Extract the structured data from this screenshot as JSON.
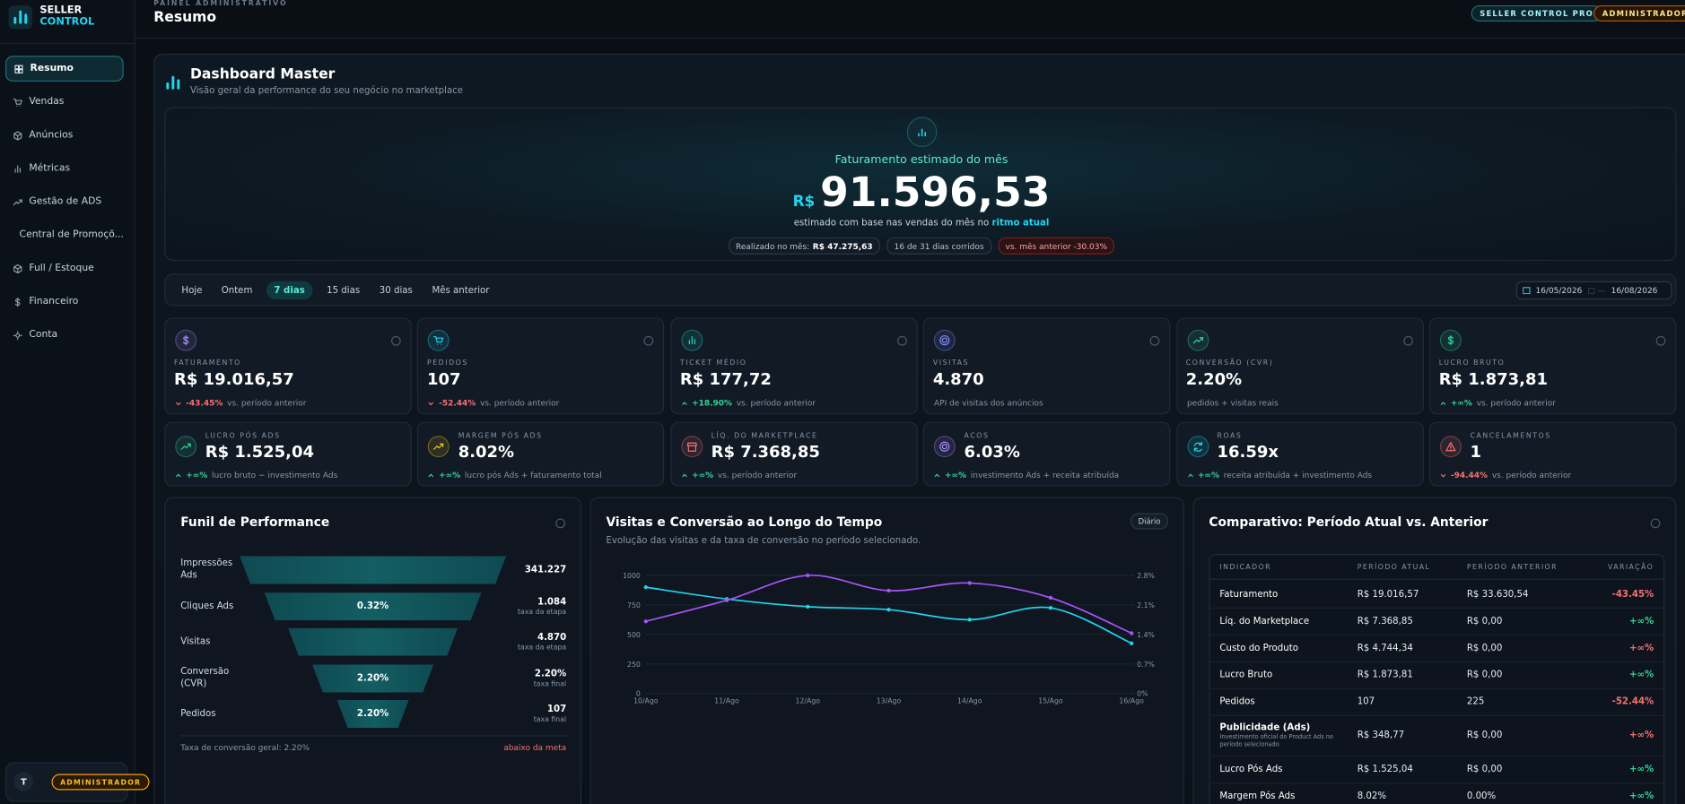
{
  "sidebar": {
    "brand": [
      "SELLER",
      "CONTROL"
    ],
    "nav": [
      "Resumo",
      "Vendas",
      "Anúncios",
      "Métricas",
      "Gestão de ADS",
      "Central de Promoçõ...",
      "Full / Estoque",
      "Financeiro",
      "Conta"
    ],
    "active": 0,
    "user": {
      "initial": "T",
      "role": "ADMINISTRADOR"
    }
  },
  "header": {
    "eyebrow": "PAINEL ADMINISTRATIVO",
    "title": "Resumo",
    "badges": [
      "SELLER CONTROL PRO",
      "ADMINISTRADOR"
    ]
  },
  "dashboard": {
    "title": "Dashboard Master",
    "subtitle": "Visão geral da performance do seu negócio no marketplace"
  },
  "hero": {
    "label": "Faturamento estimado do mês",
    "currency": "R$",
    "value": "91.596,53",
    "note": "estimado com base nas vendas do mês no",
    "note_highlight": "ritmo atual",
    "chips": [
      {
        "label": "Realizado no mês:",
        "value": "R$ 47.275,63"
      },
      {
        "label": "16 de 31 dias corridos"
      },
      {
        "label": "vs. mês anterior -30.03%",
        "tone": "negative"
      }
    ]
  },
  "filters": {
    "options": [
      "Hoje",
      "Ontem",
      "7 dias",
      "15 dias",
      "30 dias",
      "Mês anterior"
    ],
    "active": 2,
    "date_from": "16/05/2026",
    "date_to": "16/08/2026"
  },
  "kpis": [
    {
      "label": "FATURAMENTO",
      "value": "R$ 19.016,57",
      "delta": "-43.45%",
      "note": "vs. período anterior"
    },
    {
      "label": "PEDIDOS",
      "value": "107",
      "delta": "-52.44%",
      "note": "vs. período anterior"
    },
    {
      "label": "TICKET MÉDIO",
      "value": "R$ 177,72",
      "delta": "+18.90%",
      "note": "vs. período anterior"
    },
    {
      "label": "VISITAS",
      "value": "4.870",
      "note": "API de visitas dos anúncios"
    },
    {
      "label": "CONVERSÃO (CVR)",
      "value": "2.20%",
      "note": "pedidos + visitas reais"
    },
    {
      "label": "LUCRO BRUTO",
      "value": "R$ 1.873,81",
      "delta": "+∞%",
      "note": "vs. período anterior"
    },
    {
      "label": "LUCRO PÓS ADS",
      "value": "R$ 1.525,04",
      "delta": "+∞%",
      "note": "lucro bruto − investimento Ads"
    },
    {
      "label": "MARGEM PÓS ADS",
      "value": "8.02%",
      "delta": "+∞%",
      "note": "lucro pós Ads + faturamento total"
    },
    {
      "label": "LÍQ. DO MARKETPLACE",
      "value": "R$ 7.368,85",
      "delta": "+∞%",
      "note": "vs. período anterior"
    },
    {
      "label": "ACOS",
      "value": "6.03%",
      "delta": "+∞%",
      "note": "investimento Ads + receita atribuída"
    },
    {
      "label": "ROAS",
      "value": "16.59x",
      "delta": "+∞%",
      "note": "receita atribuída + investimento Ads"
    },
    {
      "label": "CANCELAMENTOS",
      "value": "1",
      "delta": "-94.44%",
      "note": "vs. período anterior"
    }
  ],
  "funnel": {
    "title": "Funil de Performance",
    "stages": [
      {
        "label": "Impressões Ads",
        "value": "341.227"
      },
      {
        "label": "Cliques Ads",
        "rate": "0.32%",
        "value": "1.084",
        "sub": "taxa da etapa"
      },
      {
        "label": "Visitas",
        "value": "4.870",
        "sub": "taxa da etapa"
      },
      {
        "label": "Conversão (CVR)",
        "rate": "2.20%",
        "value": "2.20%",
        "sub": "taxa final"
      },
      {
        "label": "Pedidos",
        "rate": "2.20%",
        "value": "107",
        "sub": "taxa final"
      }
    ],
    "footer": "Taxa de conversão geral: 2.20%",
    "status": "abaixo da meta"
  },
  "trend": {
    "title": "Visitas e Conversão ao Longo do Tempo",
    "subtitle": "Evolução das visitas e da taxa de conversão no período selecionado.",
    "badge": "Diário",
    "chart_data": {
      "type": "line",
      "categories": [
        "10/Ago",
        "11/Ago",
        "12/Ago",
        "13/Ago",
        "14/Ago",
        "15/Ago",
        "16/Ago"
      ],
      "series": [
        {
          "color": "#22d3ee",
          "values": [
            900,
            800,
            735,
            710,
            625,
            725,
            425
          ]
        },
        {
          "color": "#a855f7",
          "axis": "y2",
          "values": [
            1.71,
            2.21,
            2.8,
            2.44,
            2.62,
            2.27,
            1.43
          ]
        }
      ],
      "ylim": [
        0,
        1000
      ],
      "yticks": [
        0,
        250,
        500,
        750,
        1000
      ],
      "y2lim": [
        0,
        2.8
      ],
      "y2ticks": [
        {
          "value": 0,
          "label": "0%"
        },
        {
          "value": 0.7,
          "label": "0.7%"
        },
        {
          "value": 1.4,
          "label": "1.4%"
        },
        {
          "value": 2.1,
          "label": "2.1%"
        },
        {
          "value": 2.8,
          "label": "2.8%"
        }
      ],
      "grid": true
    }
  },
  "comparison": {
    "title": "Comparativo: Período Atual vs. Anterior",
    "columns": [
      "INDICADOR",
      "PERÍODO ATUAL",
      "PERÍODO ANTERIOR",
      "VARIAÇÃO"
    ],
    "rows": [
      {
        "indicator": "Faturamento",
        "current": "R$ 19.016,57",
        "previous": "R$ 33.630,54",
        "change": "-43.45%",
        "tone": "negative"
      },
      {
        "indicator": "Líq. do Marketplace",
        "current": "R$ 7.368,85",
        "previous": "R$ 0,00",
        "change": "+∞%",
        "tone": "positive"
      },
      {
        "indicator": "Custo do Produto",
        "current": "R$ 4.744,34",
        "previous": "R$ 0,00",
        "change": "+∞%",
        "tone": "negative"
      },
      {
        "indicator": "Lucro Bruto",
        "current": "R$ 1.873,81",
        "previous": "R$ 0,00",
        "change": "+∞%",
        "tone": "positive"
      },
      {
        "indicator": "Pedidos",
        "current": "107",
        "previous": "225",
        "change": "-52.44%",
        "tone": "negative"
      },
      {
        "indicator": "Publicidade (Ads)",
        "note": "Investimento oficial do Product Ads no período selecionado",
        "current": "R$ 348,77",
        "previous": "R$ 0,00",
        "change": "+∞%",
        "tone": "negative"
      },
      {
        "indicator": "Lucro Pós Ads",
        "current": "R$ 1.525,04",
        "previous": "R$ 0,00",
        "change": "+∞%",
        "tone": "positive"
      },
      {
        "indicator": "Margem Pós Ads",
        "current": "8.02%",
        "previous": "0.00%",
        "change": "+∞%",
        "tone": "positive"
      }
    ]
  }
}
